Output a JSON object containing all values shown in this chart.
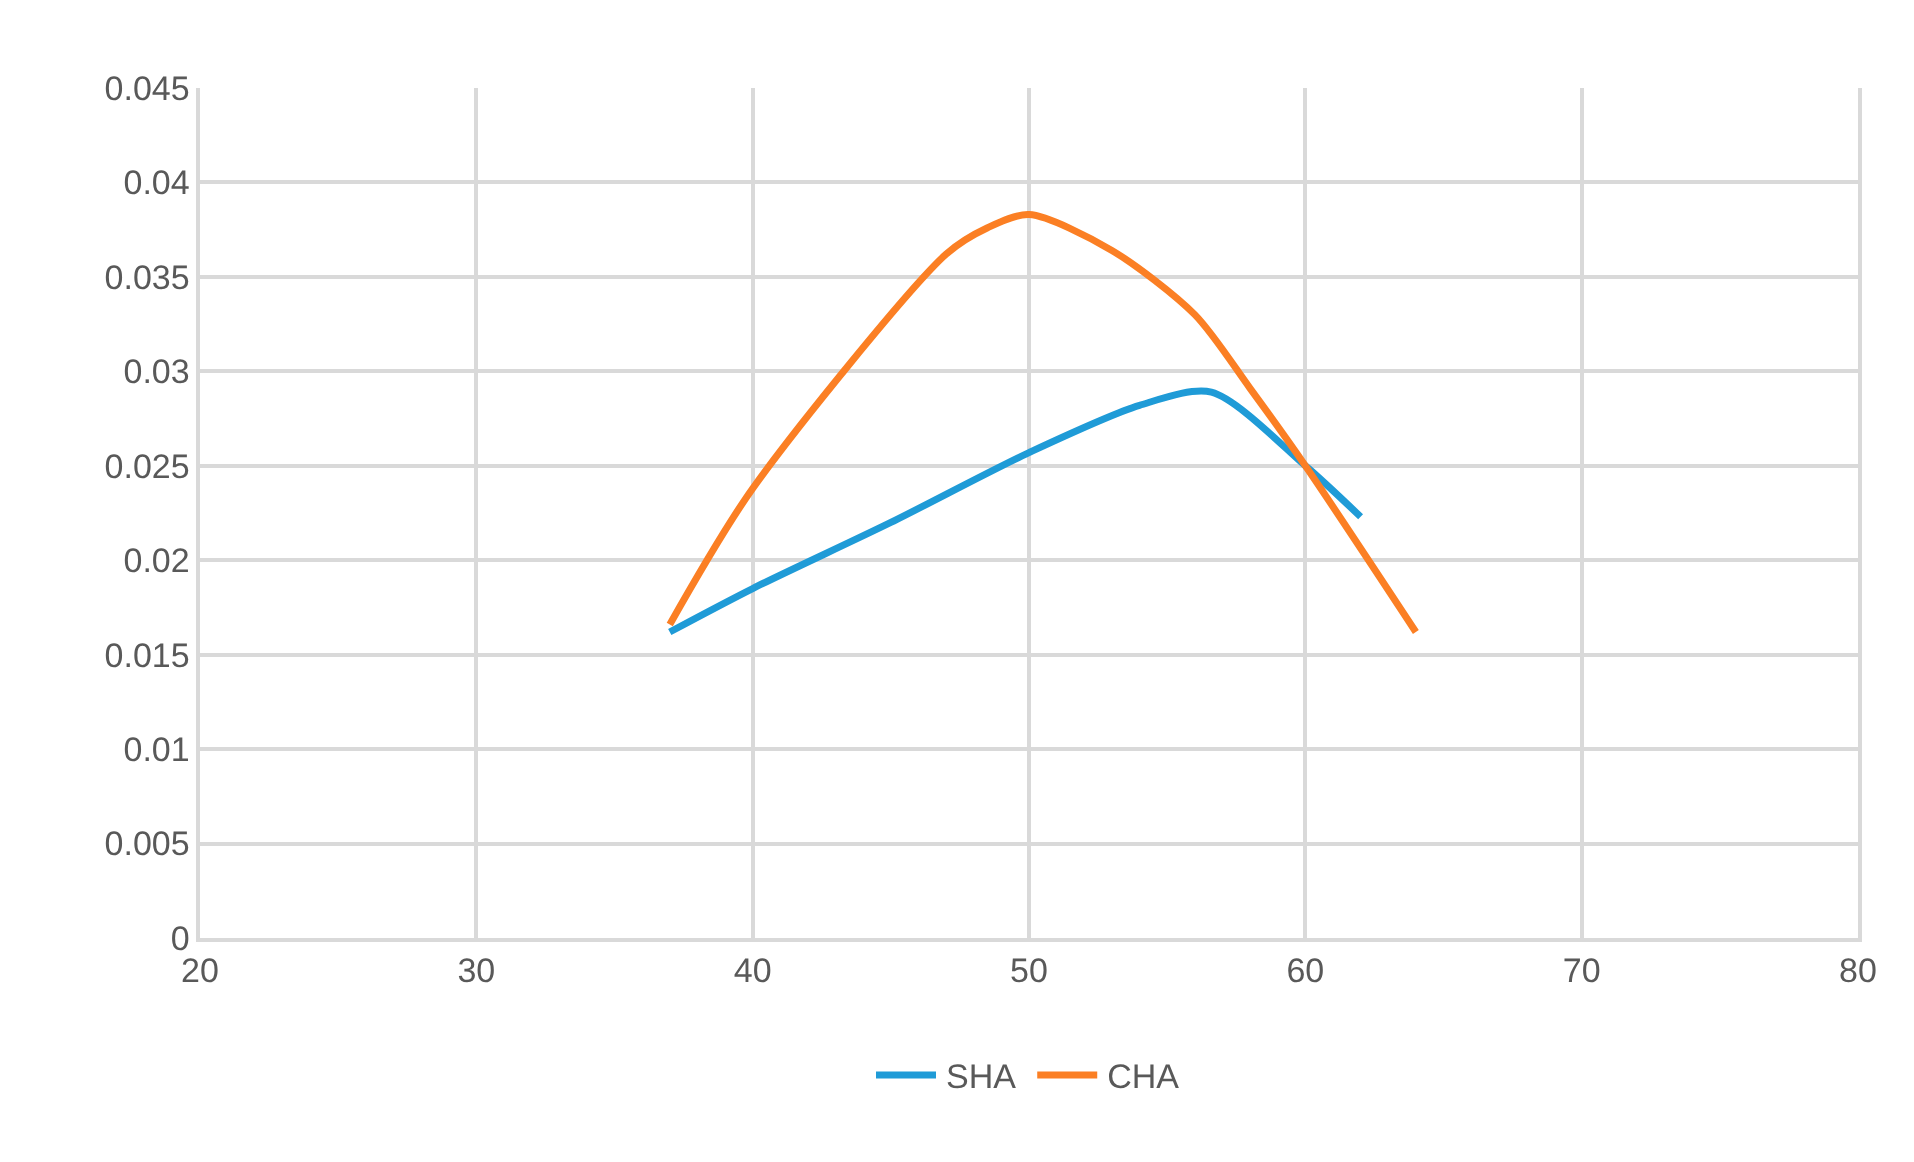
{
  "chart_data": {
    "type": "line",
    "series": [
      {
        "name": "SHA",
        "color": "#1f9bd7",
        "x": [
          37,
          40,
          45,
          50,
          54,
          56.6,
          60,
          62
        ],
        "values": [
          0.0162,
          0.0185,
          0.022,
          0.0257,
          0.0282,
          0.0289,
          0.025,
          0.0223
        ]
      },
      {
        "name": "CHA",
        "color": "#fb7f24",
        "x": [
          37,
          40,
          47,
          48.5,
          50,
          53,
          56,
          58,
          60,
          64
        ],
        "values": [
          0.0166,
          0.0238,
          0.0362,
          0.0376,
          0.0383,
          0.0364,
          0.033,
          0.0291,
          0.025,
          0.0162
        ]
      }
    ],
    "xlim": [
      20,
      80
    ],
    "xticks": [
      20,
      30,
      40,
      50,
      60,
      70,
      80
    ],
    "ylim": [
      0,
      0.045
    ],
    "yticks": [
      0,
      0.005,
      0.01,
      0.015,
      0.02,
      0.025,
      0.03,
      0.035,
      0.04,
      0.045
    ],
    "grid": true,
    "legend": "bottom",
    "marker": "none",
    "line_style": "solid"
  }
}
